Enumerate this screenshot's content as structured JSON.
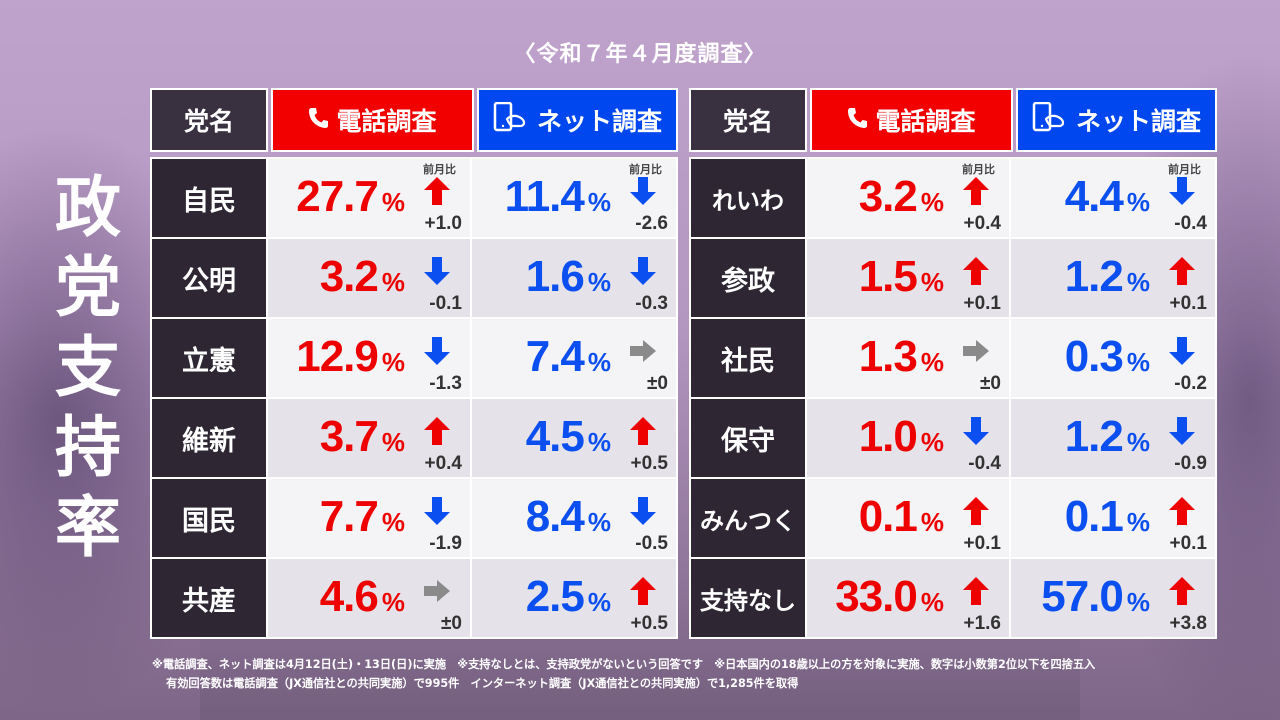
{
  "title": "政党支持率",
  "title_chars": [
    "政",
    "党",
    "支",
    "持",
    "率"
  ],
  "subtitle": "〈令和７年４月度調査〉",
  "colors": {
    "phone_accent": "#f20000",
    "net_accent": "#0047f0",
    "name_cell": "#2e2733",
    "arrow_up": "#ee0000",
    "arrow_down": "#0b4ff0",
    "arrow_flat": "#8a8a8a"
  },
  "header": {
    "party_label": "党名",
    "phone_label": "電話調査",
    "phone_icon": "phone-icon",
    "net_label": "ネット調査",
    "net_icon": "smartphone-touch-icon"
  },
  "mom_label": "前月比",
  "left_table": {
    "rows": [
      {
        "party": "自民",
        "phone": {
          "value": "27.7",
          "unit": "%",
          "trend": "up",
          "delta": "+1.0"
        },
        "net": {
          "value": "11.4",
          "unit": "%",
          "trend": "down",
          "delta": "-2.6"
        }
      },
      {
        "party": "公明",
        "phone": {
          "value": "3.2",
          "unit": "%",
          "trend": "down",
          "delta": "-0.1"
        },
        "net": {
          "value": "1.6",
          "unit": "%",
          "trend": "down",
          "delta": "-0.3"
        }
      },
      {
        "party": "立憲",
        "phone": {
          "value": "12.9",
          "unit": "%",
          "trend": "down",
          "delta": "-1.3"
        },
        "net": {
          "value": "7.4",
          "unit": "%",
          "trend": "flat",
          "delta": "±0"
        }
      },
      {
        "party": "維新",
        "phone": {
          "value": "3.7",
          "unit": "%",
          "trend": "up",
          "delta": "+0.4"
        },
        "net": {
          "value": "4.5",
          "unit": "%",
          "trend": "up",
          "delta": "+0.5"
        }
      },
      {
        "party": "国民",
        "phone": {
          "value": "7.7",
          "unit": "%",
          "trend": "down",
          "delta": "-1.9"
        },
        "net": {
          "value": "8.4",
          "unit": "%",
          "trend": "down",
          "delta": "-0.5"
        }
      },
      {
        "party": "共産",
        "phone": {
          "value": "4.6",
          "unit": "%",
          "trend": "flat",
          "delta": "±0"
        },
        "net": {
          "value": "2.5",
          "unit": "%",
          "trend": "up",
          "delta": "+0.5"
        }
      }
    ]
  },
  "right_table": {
    "rows": [
      {
        "party": "れいわ",
        "phone": {
          "value": "3.2",
          "unit": "%",
          "trend": "up",
          "delta": "+0.4"
        },
        "net": {
          "value": "4.4",
          "unit": "%",
          "trend": "down",
          "delta": "-0.4"
        }
      },
      {
        "party": "参政",
        "phone": {
          "value": "1.5",
          "unit": "%",
          "trend": "up",
          "delta": "+0.1"
        },
        "net": {
          "value": "1.2",
          "unit": "%",
          "trend": "up",
          "delta": "+0.1"
        }
      },
      {
        "party": "社民",
        "phone": {
          "value": "1.3",
          "unit": "%",
          "trend": "flat",
          "delta": "±0"
        },
        "net": {
          "value": "0.3",
          "unit": "%",
          "trend": "down",
          "delta": "-0.2"
        }
      },
      {
        "party": "保守",
        "phone": {
          "value": "1.0",
          "unit": "%",
          "trend": "down",
          "delta": "-0.4"
        },
        "net": {
          "value": "1.2",
          "unit": "%",
          "trend": "down",
          "delta": "-0.9"
        }
      },
      {
        "party": "みんつく",
        "phone": {
          "value": "0.1",
          "unit": "%",
          "trend": "up",
          "delta": "+0.1"
        },
        "net": {
          "value": "0.1",
          "unit": "%",
          "trend": "up",
          "delta": "+0.1"
        }
      },
      {
        "party": "支持なし",
        "phone": {
          "value": "33.0",
          "unit": "%",
          "trend": "up",
          "delta": "+1.6"
        },
        "net": {
          "value": "57.0",
          "unit": "%",
          "trend": "up",
          "delta": "+3.8"
        }
      }
    ]
  },
  "notes": {
    "line1": "※電話調査、ネット調査は4月12日(土)・13日(日)に実施　※支持なしとは、支持政党がないという回答です　※日本国内の18歳以上の方を対象に実施、数字は小数第2位以下を四捨五入",
    "line2": "有効回答数は電話調査（JX通信社との共同実施）で995件　インターネット調査（JX通信社との共同実施）で1,285件を取得"
  },
  "chart_data": {
    "type": "table",
    "title": "政党支持率（令和7年4月度調査）",
    "columns": [
      "党名",
      "電話調査(%)",
      "電話 前月比",
      "ネット調査(%)",
      "ネット 前月比"
    ],
    "rows": [
      [
        "自民",
        27.7,
        1.0,
        11.4,
        -2.6
      ],
      [
        "公明",
        3.2,
        -0.1,
        1.6,
        -0.3
      ],
      [
        "立憲",
        12.9,
        -1.3,
        7.4,
        0
      ],
      [
        "維新",
        3.7,
        0.4,
        4.5,
        0.5
      ],
      [
        "国民",
        7.7,
        -1.9,
        8.4,
        -0.5
      ],
      [
        "共産",
        4.6,
        0,
        2.5,
        0.5
      ],
      [
        "れいわ",
        3.2,
        0.4,
        4.4,
        -0.4
      ],
      [
        "参政",
        1.5,
        0.1,
        1.2,
        0.1
      ],
      [
        "社民",
        1.3,
        0,
        0.3,
        -0.2
      ],
      [
        "保守",
        1.0,
        -0.4,
        1.2,
        -0.9
      ],
      [
        "みんつく",
        0.1,
        0.1,
        0.1,
        0.1
      ],
      [
        "支持なし",
        33.0,
        1.6,
        57.0,
        3.8
      ]
    ]
  }
}
